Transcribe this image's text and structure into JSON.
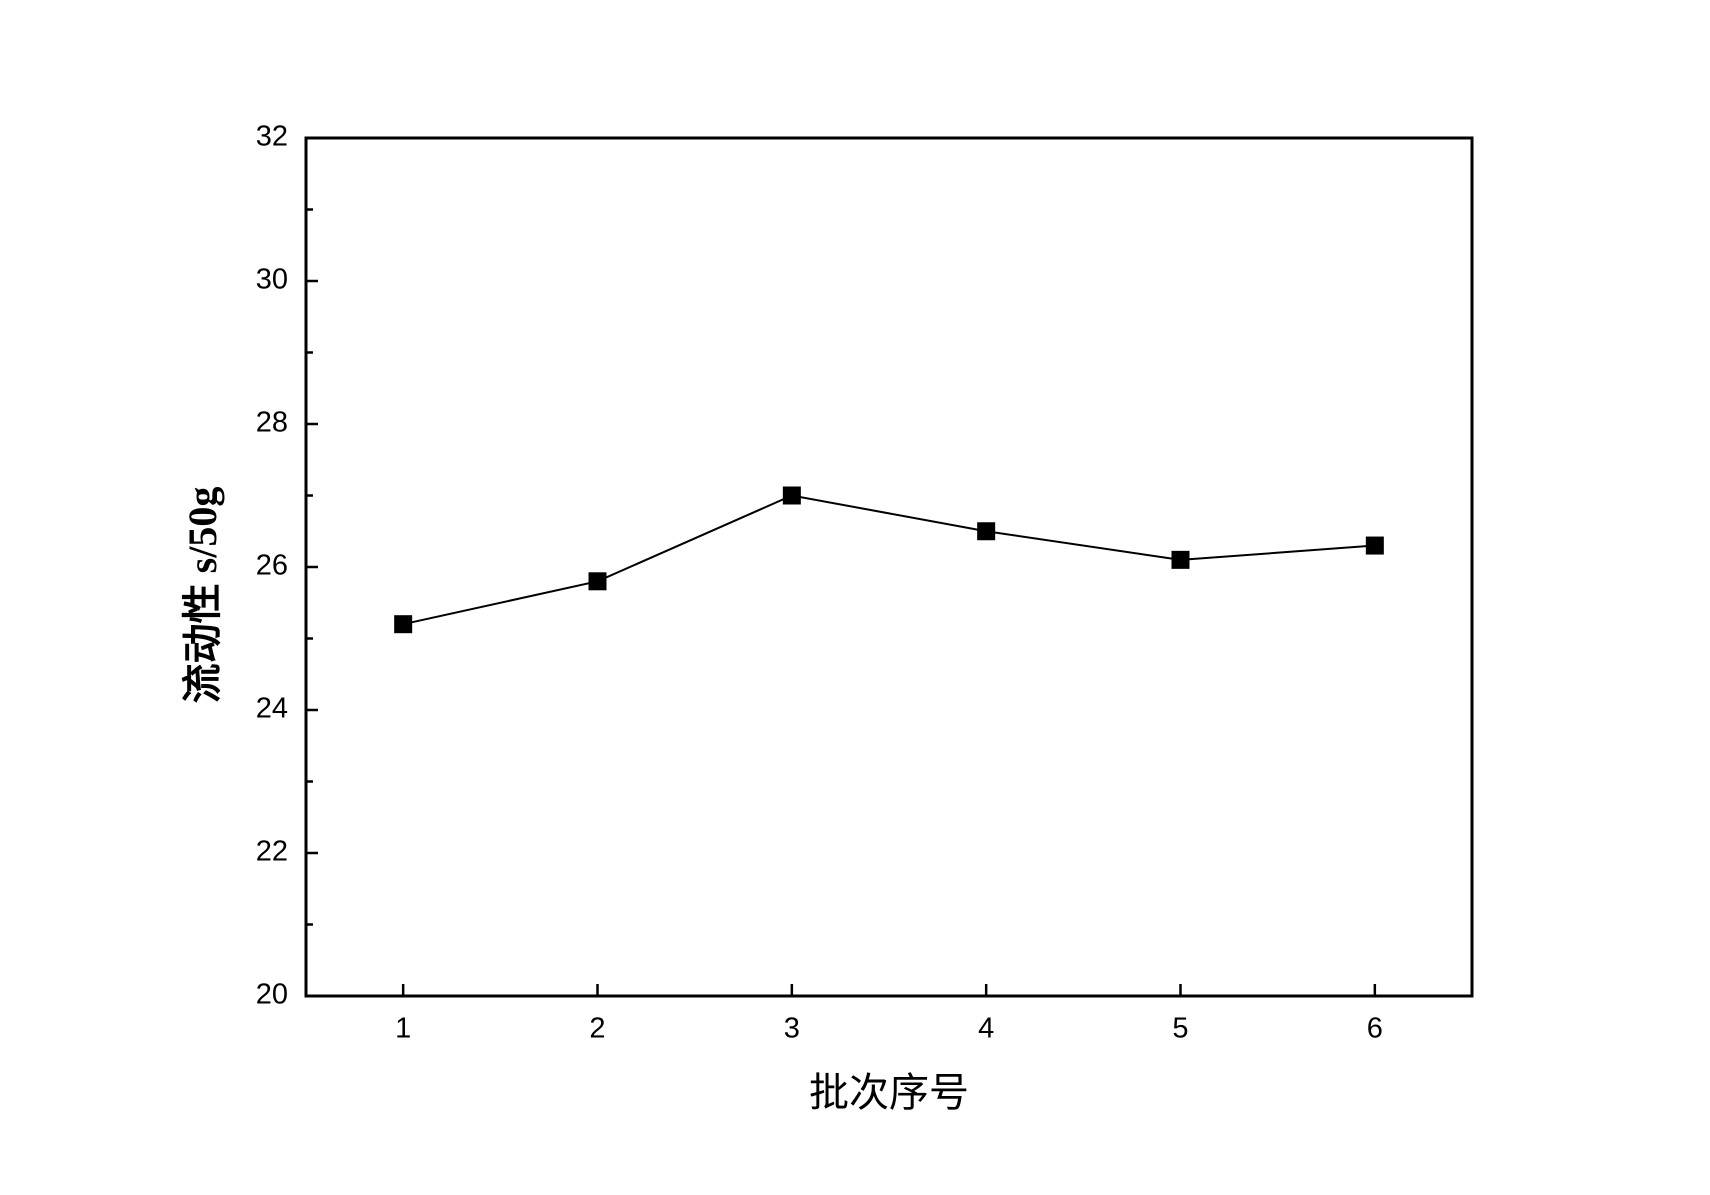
{
  "chart_data": {
    "type": "line",
    "x_label": "批次序号",
    "y_label": "流动性  s/50g",
    "x": [
      1,
      2,
      3,
      4,
      5,
      6
    ],
    "series": [
      {
        "values": [
          25.2,
          25.8,
          27.0,
          26.5,
          26.1,
          26.3
        ],
        "color": "#000000",
        "marker": "square"
      }
    ],
    "xlim": [
      0.5,
      6.5
    ],
    "xticks": [
      1,
      2,
      3,
      4,
      5,
      6
    ],
    "ylim": [
      20,
      32
    ],
    "yticks": [
      20,
      22,
      24,
      26,
      28,
      30,
      32
    ],
    "grid": false
  }
}
